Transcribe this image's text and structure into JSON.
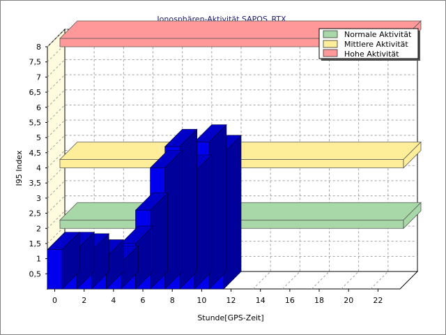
{
  "chart_data": {
    "type": "bar",
    "title": "Ionosphären-Aktivität SAPOS_RTX",
    "xlabel": "Stunde[GPS-Zeit]",
    "ylabel": "I95 Index",
    "xlim": [
      0,
      24
    ],
    "ylim": [
      0,
      8
    ],
    "x_ticks": [
      "0",
      "2",
      "4",
      "6",
      "8",
      "10",
      "12",
      "14",
      "16",
      "18",
      "20",
      "22"
    ],
    "y_ticks": [
      "0,5",
      "1",
      "1,5",
      "2",
      "2,5",
      "3",
      "3,5",
      "4",
      "4,5",
      "5",
      "5,5",
      "6",
      "6,5",
      "7",
      "7,5",
      "8"
    ],
    "grid": true,
    "legend_position": "top-right",
    "series": [
      {
        "hours": [
          0,
          1,
          2,
          3,
          4,
          5,
          6,
          7,
          8,
          9,
          10,
          11
        ],
        "values": [
          1.3,
          1.3,
          1.25,
          1.05,
          0.85,
          1.5,
          2.6,
          4.0,
          4.7,
          3.85,
          4.85,
          4.5
        ],
        "color": "#0000ee"
      }
    ],
    "bands": [
      {
        "name": "Normale Aktivität",
        "y": 2.0,
        "color": "#a8d8a8"
      },
      {
        "name": "Mittlere Aktivität",
        "y": 4.0,
        "color": "#ffee99"
      },
      {
        "name": "Hohe Aktivität",
        "y": 8.0,
        "color": "#ff9999"
      }
    ]
  }
}
